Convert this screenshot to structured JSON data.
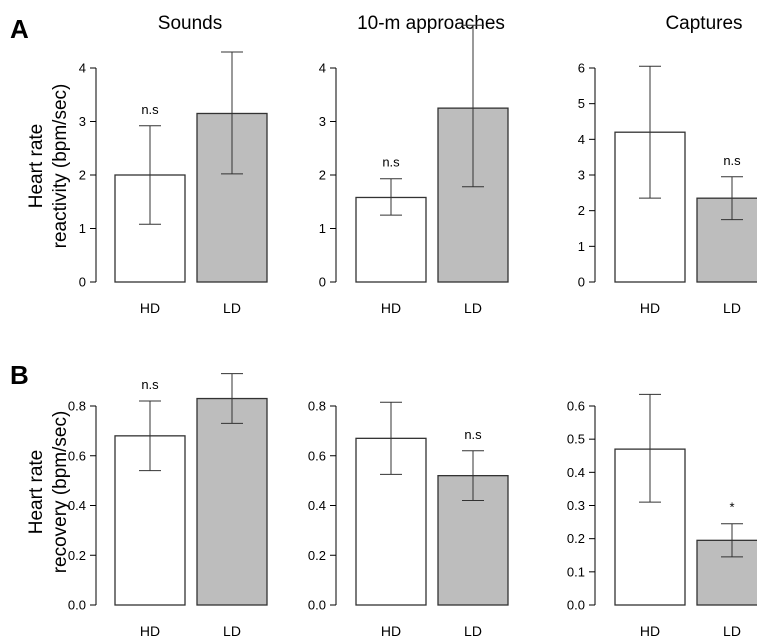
{
  "figure": {
    "panel_labels": [
      "A",
      "B"
    ],
    "column_titles": [
      "Sounds",
      "10-m approaches",
      "Captures"
    ],
    "row_ylabels": [
      [
        "Heart rate",
        "reactivity (bpm/sec)"
      ],
      [
        "Heart rate",
        "recovery (bpm/sec)"
      ]
    ]
  },
  "colors": {
    "HD": "#ffffff",
    "LD": "#bdbdbd",
    "stroke": "#333333"
  },
  "chart_data": [
    {
      "type": "bar",
      "row": 0,
      "col": 0,
      "title": "Sounds",
      "categories": [
        "HD",
        "LD"
      ],
      "values": [
        2.0,
        3.15
      ],
      "error_low": [
        1.08,
        2.02
      ],
      "error_high": [
        2.92,
        4.3
      ],
      "ylim": [
        0,
        4
      ],
      "yticks": [
        0,
        1,
        2,
        3,
        4
      ],
      "ytick_labels": [
        "0",
        "1",
        "2",
        "3",
        "4"
      ],
      "annotations": [
        {
          "category": "HD",
          "text": "n.s"
        }
      ]
    },
    {
      "type": "bar",
      "row": 0,
      "col": 1,
      "title": "10-m approaches",
      "categories": [
        "HD",
        "LD"
      ],
      "values": [
        1.58,
        3.25
      ],
      "error_low": [
        1.25,
        1.78
      ],
      "error_high": [
        1.93,
        4.8
      ],
      "ylim": [
        0,
        4
      ],
      "yticks": [
        0,
        1,
        2,
        3,
        4
      ],
      "ytick_labels": [
        "0",
        "1",
        "2",
        "3",
        "4"
      ],
      "annotations": [
        {
          "category": "HD",
          "text": "n.s"
        }
      ]
    },
    {
      "type": "bar",
      "row": 0,
      "col": 2,
      "title": "Captures",
      "categories": [
        "HD",
        "LD"
      ],
      "values": [
        4.2,
        2.35
      ],
      "error_low": [
        2.35,
        1.75
      ],
      "error_high": [
        6.05,
        2.95
      ],
      "ylim": [
        0,
        6
      ],
      "yticks": [
        0,
        1,
        2,
        3,
        4,
        5,
        6
      ],
      "ytick_labels": [
        "0",
        "1",
        "2",
        "3",
        "4",
        "5",
        "6"
      ],
      "annotations": [
        {
          "category": "LD",
          "text": "n.s"
        }
      ]
    },
    {
      "type": "bar",
      "row": 1,
      "col": 0,
      "title": "",
      "categories": [
        "HD",
        "LD"
      ],
      "values": [
        0.68,
        0.83
      ],
      "error_low": [
        0.54,
        0.73
      ],
      "error_high": [
        0.82,
        0.93
      ],
      "ylim": [
        0,
        0.8
      ],
      "yticks": [
        0,
        0.2,
        0.4,
        0.6,
        0.8
      ],
      "ytick_labels": [
        "0.0",
        "0.2",
        "0.4",
        "0.6",
        "0.8"
      ],
      "annotations": [
        {
          "category": "HD",
          "text": "n.s"
        }
      ]
    },
    {
      "type": "bar",
      "row": 1,
      "col": 1,
      "title": "",
      "categories": [
        "HD",
        "LD"
      ],
      "values": [
        0.67,
        0.52
      ],
      "error_low": [
        0.525,
        0.42
      ],
      "error_high": [
        0.815,
        0.62
      ],
      "ylim": [
        0,
        0.8
      ],
      "yticks": [
        0,
        0.2,
        0.4,
        0.6,
        0.8
      ],
      "ytick_labels": [
        "0.0",
        "0.2",
        "0.4",
        "0.6",
        "0.8"
      ],
      "annotations": [
        {
          "category": "LD",
          "text": "n.s"
        }
      ]
    },
    {
      "type": "bar",
      "row": 1,
      "col": 2,
      "title": "",
      "categories": [
        "HD",
        "LD"
      ],
      "values": [
        0.47,
        0.195
      ],
      "error_low": [
        0.31,
        0.145
      ],
      "error_high": [
        0.635,
        0.245
      ],
      "ylim": [
        0,
        0.6
      ],
      "yticks": [
        0,
        0.1,
        0.2,
        0.3,
        0.4,
        0.5,
        0.6
      ],
      "ytick_labels": [
        "0.0",
        "0.1",
        "0.2",
        "0.3",
        "0.4",
        "0.5",
        "0.6"
      ],
      "annotations": [
        {
          "category": "LD",
          "text": "*"
        }
      ]
    }
  ]
}
